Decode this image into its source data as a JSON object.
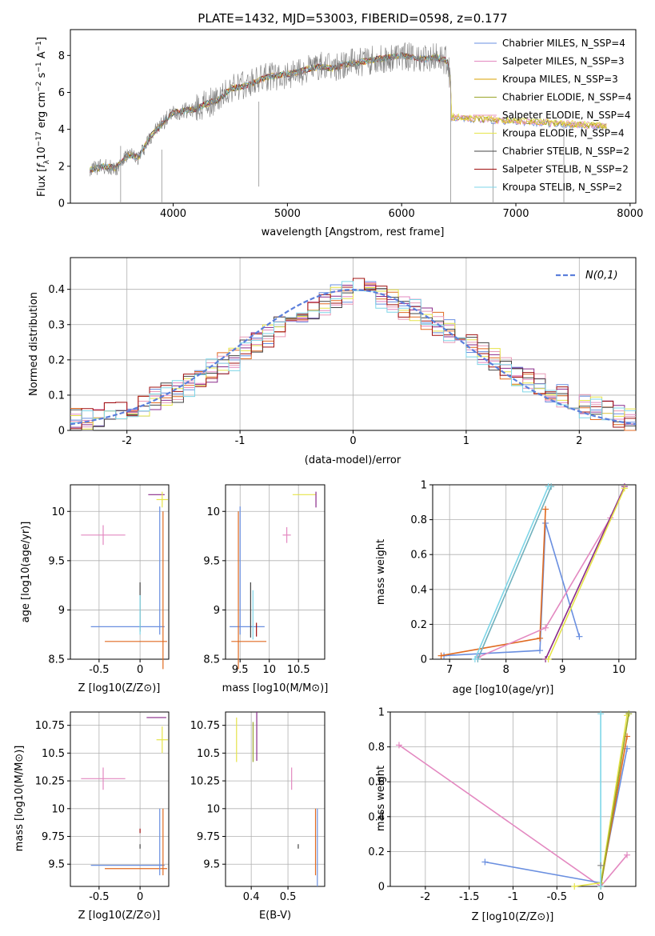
{
  "figure": {
    "title": "PLATE=1432, MJD=53003, FIBERID=0598, z=0.177"
  },
  "colors": {
    "chabrier_miles": "#6a8fe0",
    "salpeter_miles": "#e388c0",
    "kroupa_miles": "#d9a000",
    "chabrier_elodie": "#9aa52a",
    "salpeter_elodie": "#e89ab8",
    "kroupa_elodie": "#e6e44a",
    "chabrier_stelib": "#444444",
    "salpeter_stelib": "#a01010",
    "kroupa_stelib": "#7ed6e8",
    "data": "#808080",
    "normal": "#5b7fdc"
  },
  "chart_data": [
    {
      "id": "spectrum",
      "type": "line",
      "title": "PLATE=1432, MJD=53003, FIBERID=0598, z=0.177",
      "xlabel": "wavelength [Angstrom, rest frame]",
      "ylabel": "Flux [f_λ 10^-17 erg cm^-2 s^-1 A^-1]",
      "xlim": [
        3100,
        8050
      ],
      "ylim": [
        0,
        9.4
      ],
      "xticks": [
        4000,
        5000,
        6000,
        7000,
        8000
      ],
      "yticks": [
        0,
        2,
        4,
        6,
        8
      ],
      "grid": false,
      "legend_position": "top-right",
      "data_flux_points": {
        "x": [
          3270,
          3400,
          3500,
          3600,
          3700,
          3800,
          3900,
          4000,
          4100,
          4200,
          4300,
          4400,
          4500,
          4600,
          4700,
          4800,
          4900,
          5000,
          5100,
          5200,
          5300,
          5400,
          5500,
          5600,
          5700,
          5800,
          5900,
          6000,
          6100,
          6200,
          6300,
          6400,
          6430
        ],
        "y": [
          1.8,
          2.0,
          1.9,
          2.6,
          2.5,
          3.6,
          4.3,
          4.9,
          5.0,
          5.1,
          5.4,
          5.6,
          6.2,
          6.3,
          6.5,
          6.8,
          6.9,
          7.0,
          7.1,
          7.3,
          7.4,
          7.3,
          7.5,
          7.6,
          7.7,
          7.8,
          7.9,
          8.0,
          7.9,
          7.8,
          7.9,
          7.7,
          6.6
        ]
      },
      "series": [
        {
          "name": "Chabrier MILES, N_SSP=4",
          "color_key": "chabrier_miles"
        },
        {
          "name": "Salpeter MILES, N_SSP=3",
          "color_key": "salpeter_miles"
        },
        {
          "name": "Kroupa MILES, N_SSP=3",
          "color_key": "kroupa_miles"
        },
        {
          "name": "Chabrier ELODIE, N_SSP=4",
          "color_key": "chabrier_elodie"
        },
        {
          "name": "Salpeter ELODIE, N_SSP=4",
          "color_key": "salpeter_elodie"
        },
        {
          "name": "Kroupa ELODIE, N_SSP=4",
          "color_key": "kroupa_elodie"
        },
        {
          "name": "Chabrier STELIB, N_SSP=2",
          "color_key": "chabrier_stelib"
        },
        {
          "name": "Salpeter STELIB, N_SSP=2",
          "color_key": "salpeter_stelib"
        },
        {
          "name": "Kroupa STELIB, N_SSP=2",
          "color_key": "kroupa_stelib"
        }
      ]
    },
    {
      "id": "residuals",
      "type": "line",
      "xlabel": "(data-model)/error",
      "ylabel": "Normed distribution",
      "xlim": [
        -2.5,
        2.5
      ],
      "ylim": [
        0,
        0.49
      ],
      "xticks": [
        -2,
        -1,
        0,
        1,
        2
      ],
      "yticks": [
        0.0,
        0.1,
        0.2,
        0.3,
        0.4
      ],
      "grid": true,
      "legend": "N(0,1)",
      "legend_position": "top-right",
      "histogram": {
        "bin_width": 0.1,
        "x_start": -2.5,
        "values": [
          0.03,
          0.03,
          0.04,
          0.05,
          0.06,
          0.06,
          0.07,
          0.09,
          0.1,
          0.11,
          0.13,
          0.15,
          0.17,
          0.19,
          0.2,
          0.23,
          0.25,
          0.27,
          0.29,
          0.31,
          0.33,
          0.35,
          0.36,
          0.38,
          0.39,
          0.4,
          0.39,
          0.38,
          0.37,
          0.35,
          0.34,
          0.32,
          0.3,
          0.28,
          0.26,
          0.24,
          0.22,
          0.2,
          0.18,
          0.16,
          0.14,
          0.13,
          0.11,
          0.1,
          0.08,
          0.07,
          0.06,
          0.05,
          0.04,
          0.03
        ]
      }
    },
    {
      "id": "age_vs_Z",
      "type": "scatter",
      "xlabel": "Z [log10(Z/Z⊙)]",
      "ylabel": "age  [log10(age/yr)]",
      "xlim": [
        -0.85,
        0.35
      ],
      "ylim": [
        8.5,
        10.27
      ],
      "xticks": [
        -0.5,
        0.0
      ],
      "yticks": [
        8.5,
        9.0,
        9.5,
        10.0
      ],
      "grid": true
    },
    {
      "id": "age_vs_mass",
      "type": "scatter",
      "xlabel": "mass [log10(M/M⊙)]",
      "xlim": [
        9.25,
        10.95
      ],
      "ylim": [
        8.5,
        10.27
      ],
      "xticks": [
        9.5,
        10.0,
        10.5
      ],
      "yticks": [
        8.5,
        9.0,
        9.5,
        10.0
      ],
      "grid": true
    },
    {
      "id": "weight_vs_age",
      "type": "line",
      "xlabel": "age  [log10(age/yr)]",
      "ylabel": "mass weight",
      "xlim": [
        6.7,
        10.3
      ],
      "ylim": [
        0.0,
        1.0
      ],
      "xticks": [
        7,
        8,
        9,
        10
      ],
      "yticks": [
        0.0,
        0.2,
        0.4,
        0.6,
        0.8,
        1.0
      ],
      "grid": true
    },
    {
      "id": "mass_vs_Z",
      "type": "scatter",
      "xlabel": "Z [log10(Z/Z⊙)]",
      "ylabel": "mass [log10(M/M⊙)]",
      "xlim": [
        -0.85,
        0.35
      ],
      "ylim": [
        9.3,
        10.87
      ],
      "xticks": [
        -0.5,
        0.0
      ],
      "yticks": [
        9.5,
        9.75,
        10.0,
        10.25,
        10.5,
        10.75
      ],
      "grid": true
    },
    {
      "id": "mass_vs_ebv",
      "type": "scatter",
      "xlabel": "E(B-V)",
      "xlim": [
        0.33,
        0.6
      ],
      "ylim": [
        9.3,
        10.87
      ],
      "xticks": [
        0.4,
        0.5
      ],
      "yticks": [
        9.5,
        9.75,
        10.0,
        10.25,
        10.5,
        10.75
      ],
      "grid": true
    },
    {
      "id": "weight_vs_Z",
      "type": "line",
      "xlabel": "Z [log10(Z/Z⊙)]",
      "ylabel": "mass weight",
      "xlim": [
        -2.4,
        0.4
      ],
      "ylim": [
        0.0,
        1.0
      ],
      "xticks": [
        -2.0,
        -1.5,
        -1.0,
        -0.5,
        0.0
      ],
      "yticks": [
        0.0,
        0.2,
        0.4,
        0.6,
        0.8,
        1.0
      ],
      "grid": true
    }
  ]
}
